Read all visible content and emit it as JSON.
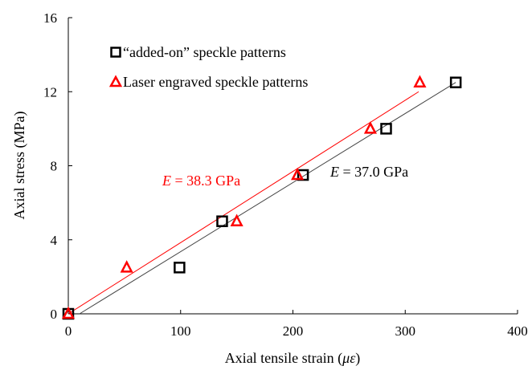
{
  "chart_data": {
    "type": "scatter",
    "xlabel_main": "Axial tensile strain (",
    "xlabel_unit": "με",
    "xlabel_close": ")",
    "ylabel": "Axial stress (MPa)",
    "xlim": [
      0,
      400
    ],
    "ylim": [
      0,
      16
    ],
    "xticks": [
      0,
      100,
      200,
      300,
      400
    ],
    "yticks": [
      0,
      4,
      8,
      12,
      16
    ],
    "grid": false,
    "legend_position": "top-left",
    "series": [
      {
        "name": "“added-on” speckle patterns",
        "marker": "square",
        "color": "#000000",
        "x": [
          0,
          99,
          137,
          209,
          283,
          345
        ],
        "y": [
          0,
          2.5,
          5.0,
          7.5,
          10.0,
          12.5
        ],
        "fit_line": {
          "x": [
            10,
            345
          ],
          "y": [
            0,
            12.5
          ]
        },
        "annotation": {
          "italic": "E",
          "text": " = 37.0  GPa"
        }
      },
      {
        "name": "Laser engraved speckle patterns",
        "marker": "triangle",
        "color": "#ff0000",
        "x": [
          0,
          52,
          150,
          204,
          269,
          313
        ],
        "y": [
          0,
          2.5,
          5.0,
          7.5,
          10.0,
          12.5
        ],
        "fit_line": {
          "x": [
            0,
            312
          ],
          "y": [
            0,
            12.0
          ]
        },
        "annotation": {
          "italic": "E",
          "text": " = 38.3  GPa"
        }
      }
    ]
  }
}
